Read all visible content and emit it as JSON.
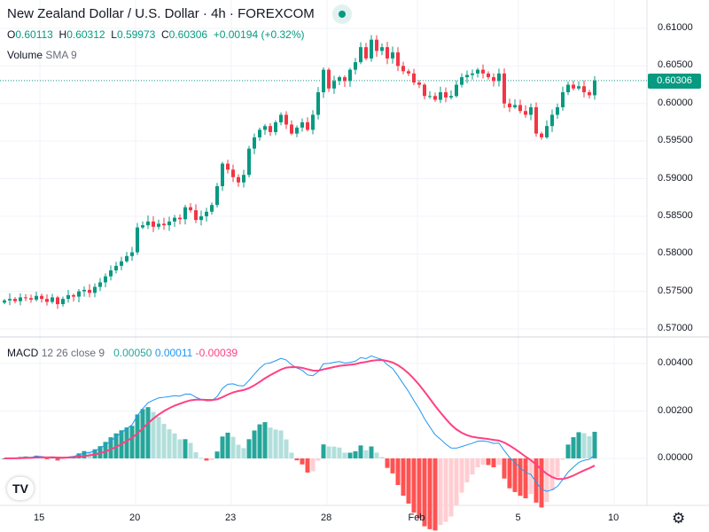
{
  "header": {
    "title": "New Zealand Dollar / U.S. Dollar · 4h · FOREXCOM",
    "ohlc": {
      "o_label": "O",
      "o": "0.60113",
      "h_label": "H",
      "h": "0.60312",
      "l_label": "L",
      "l": "0.59973",
      "c_label": "C",
      "c": "0.60306",
      "change": "+0.00194 (+0.32%)"
    },
    "volume_label": "Volume",
    "volume_sma": "SMA 9"
  },
  "macd_legend": {
    "name": "MACD",
    "params": "12 26 close 9",
    "hist": "0.00050",
    "macd": "0.00011",
    "signal": "-0.00039"
  },
  "price_axis": [
    "0.61000",
    "0.60500",
    "0.60000",
    "0.59500",
    "0.59000",
    "0.58500",
    "0.58000",
    "0.57500",
    "0.57000"
  ],
  "price_axis_values": [
    0.61,
    0.605,
    0.6,
    0.595,
    0.59,
    0.585,
    0.58,
    0.575,
    0.57
  ],
  "current_price": "0.60306",
  "macd_axis": [
    "0.00400",
    "0.00200",
    "0.00000"
  ],
  "macd_axis_values": [
    0.004,
    0.002,
    0
  ],
  "time_axis": [
    "15",
    "20",
    "23",
    "28",
    "Feb",
    "5",
    "10"
  ],
  "time_axis_index": [
    7,
    25,
    43,
    61,
    78,
    97,
    115
  ],
  "colors": {
    "up": "#089981",
    "down": "#F23645",
    "macd": "#2196F3",
    "signal": "#FF4081",
    "hist_up": "#26A69A",
    "hist_up_weak": "#B2DFDB",
    "hist_down": "#FF5252",
    "hist_down_weak": "#FFCDD2"
  },
  "icons": {
    "logo": "tradingview-logo",
    "settings": "gear-icon",
    "live": "market-open-dot"
  },
  "logo_text": "TV",
  "chart_data": {
    "type": "candlestick",
    "symbol": "NZDUSD",
    "timeframe": "4h",
    "ylim": [
      0.5695,
      0.6115
    ],
    "macd_ylim": [
      -0.0009,
      0.0048
    ],
    "closes": [
      0.5738,
      0.574,
      0.5737,
      0.5742,
      0.5741,
      0.5739,
      0.5744,
      0.574,
      0.5736,
      0.5742,
      0.5733,
      0.574,
      0.5745,
      0.5743,
      0.575,
      0.5752,
      0.5748,
      0.5756,
      0.5762,
      0.577,
      0.5778,
      0.5784,
      0.579,
      0.5797,
      0.5802,
      0.5835,
      0.5838,
      0.5843,
      0.5836,
      0.584,
      0.5838,
      0.5843,
      0.5848,
      0.5846,
      0.5862,
      0.5858,
      0.5845,
      0.585,
      0.5856,
      0.5865,
      0.589,
      0.592,
      0.5912,
      0.5902,
      0.5895,
      0.5905,
      0.594,
      0.5955,
      0.5965,
      0.597,
      0.5962,
      0.5975,
      0.5985,
      0.5972,
      0.596,
      0.5968,
      0.5975,
      0.5965,
      0.5985,
      0.6015,
      0.6045,
      0.602,
      0.603,
      0.6035,
      0.603,
      0.6045,
      0.6055,
      0.6075,
      0.606,
      0.6085,
      0.607,
      0.6075,
      0.606,
      0.6068,
      0.605,
      0.6043,
      0.604,
      0.6028,
      0.6025,
      0.601,
      0.601,
      0.6005,
      0.6015,
      0.6008,
      0.601,
      0.6025,
      0.6035,
      0.6038,
      0.604,
      0.6045,
      0.604,
      0.6035,
      0.603,
      0.604,
      0.6,
      0.5995,
      0.5998,
      0.599,
      0.5985,
      0.5995,
      0.596,
      0.5955,
      0.597,
      0.5985,
      0.5995,
      0.6015,
      0.6025,
      0.602,
      0.6023,
      0.6015,
      0.6011,
      0.60306
    ]
  }
}
